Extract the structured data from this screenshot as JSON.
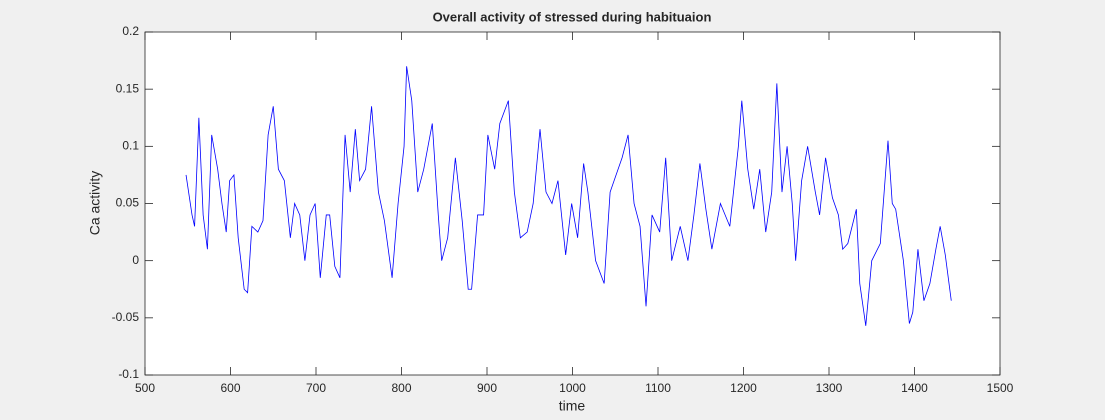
{
  "chart_data": {
    "type": "line",
    "title": "Overall activity of stressed during habituaion",
    "xlabel": "time",
    "ylabel": "Ca activity",
    "x": [
      548,
      555,
      558,
      563,
      568,
      573,
      578,
      585,
      590,
      595,
      599,
      604,
      609,
      616,
      620,
      625,
      632,
      638,
      644,
      650,
      656,
      663,
      670,
      675,
      681,
      687,
      693,
      699,
      705,
      712,
      716,
      722,
      728,
      734,
      740,
      746,
      751,
      758,
      765,
      773,
      780,
      789,
      796,
      803,
      806,
      812,
      819,
      826,
      831,
      836,
      843,
      847,
      854,
      863,
      871,
      878,
      882,
      889,
      896,
      901,
      909,
      915,
      925,
      932,
      939,
      947,
      954,
      962,
      969,
      976,
      983,
      992,
      999,
      1006,
      1013,
      1018,
      1027,
      1037,
      1044,
      1051,
      1058,
      1065,
      1072,
      1079,
      1086,
      1093,
      1102,
      1109,
      1116,
      1126,
      1135,
      1142,
      1149,
      1156,
      1163,
      1173,
      1184,
      1194,
      1198,
      1205,
      1212,
      1219,
      1226,
      1233,
      1239,
      1245,
      1251,
      1257,
      1261,
      1268,
      1275,
      1284,
      1289,
      1296,
      1304,
      1311,
      1316,
      1322,
      1332,
      1336,
      1343,
      1350,
      1360,
      1369,
      1374,
      1378,
      1387,
      1394,
      1398,
      1404,
      1411,
      1418,
      1425,
      1430,
      1436,
      1443
    ],
    "series": [
      {
        "name": "activity",
        "color": "#0000ff",
        "values": [
          0.075,
          0.04,
          0.03,
          0.125,
          0.04,
          0.01,
          0.11,
          0.08,
          0.05,
          0.025,
          0.07,
          0.075,
          0.02,
          -0.025,
          -0.028,
          0.03,
          0.025,
          0.035,
          0.11,
          0.135,
          0.08,
          0.07,
          0.02,
          0.05,
          0.04,
          0.0,
          0.04,
          0.05,
          -0.015,
          0.04,
          0.04,
          -0.005,
          -0.015,
          0.11,
          0.06,
          0.115,
          0.07,
          0.08,
          0.135,
          0.06,
          0.035,
          -0.015,
          0.05,
          0.1,
          0.17,
          0.14,
          0.06,
          0.08,
          0.1,
          0.12,
          0.04,
          0.0,
          0.02,
          0.09,
          0.035,
          -0.025,
          -0.025,
          0.04,
          0.04,
          0.11,
          0.08,
          0.12,
          0.14,
          0.06,
          0.02,
          0.025,
          0.05,
          0.115,
          0.06,
          0.05,
          0.07,
          0.005,
          0.05,
          0.02,
          0.085,
          0.06,
          0.0,
          -0.02,
          0.06,
          0.075,
          0.09,
          0.11,
          0.05,
          0.03,
          -0.04,
          0.04,
          0.025,
          0.09,
          0.0,
          0.03,
          0.0,
          0.04,
          0.085,
          0.045,
          0.01,
          0.05,
          0.03,
          0.1,
          0.14,
          0.08,
          0.045,
          0.08,
          0.025,
          0.06,
          0.155,
          0.06,
          0.1,
          0.05,
          0.0,
          0.07,
          0.1,
          0.06,
          0.04,
          0.09,
          0.055,
          0.04,
          0.01,
          0.015,
          0.045,
          -0.02,
          -0.057,
          0.0,
          0.015,
          0.105,
          0.05,
          0.045,
          0.0,
          -0.055,
          -0.045,
          0.01,
          -0.035,
          -0.02,
          0.01,
          0.03,
          0.005,
          -0.035
        ]
      }
    ],
    "xlim": [
      500,
      1500
    ],
    "ylim": [
      -0.1,
      0.2
    ],
    "xticks": [
      500,
      600,
      700,
      800,
      900,
      1000,
      1100,
      1200,
      1300,
      1400,
      1500
    ],
    "yticks": [
      -0.1,
      -0.05,
      0,
      0.05,
      0.1,
      0.15,
      0.2
    ]
  }
}
